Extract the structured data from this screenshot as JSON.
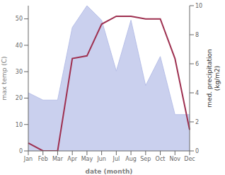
{
  "chart_data": {
    "type": "line",
    "xlabel": "date (month)",
    "ylabel": "max temp (C)",
    "y2label": "med. precipitation\n(kg/m2)",
    "categories": [
      "Jan",
      "Feb",
      "Mar",
      "Apr",
      "May",
      "Jun",
      "Jul",
      "Aug",
      "Sep",
      "Oct",
      "Nov",
      "Dec"
    ],
    "series": [
      {
        "type": "area",
        "axis": "y2",
        "color": "#b8c0e8",
        "values": [
          4.0,
          3.5,
          3.5,
          8.5,
          10.0,
          9.0,
          5.5,
          9.0,
          4.5,
          6.5,
          2.5,
          2.5
        ]
      },
      {
        "type": "line",
        "color": "#9e3050",
        "values": [
          3,
          0,
          0,
          35,
          36,
          48,
          51,
          51,
          50,
          50,
          35,
          8
        ]
      }
    ],
    "ylim": [
      0,
      55
    ],
    "yticks": [
      0,
      10,
      20,
      30,
      40,
      50
    ],
    "y2lim": [
      0,
      10
    ],
    "y2ticks": [
      0,
      2,
      4,
      6,
      8,
      10
    ],
    "grid": false
  }
}
